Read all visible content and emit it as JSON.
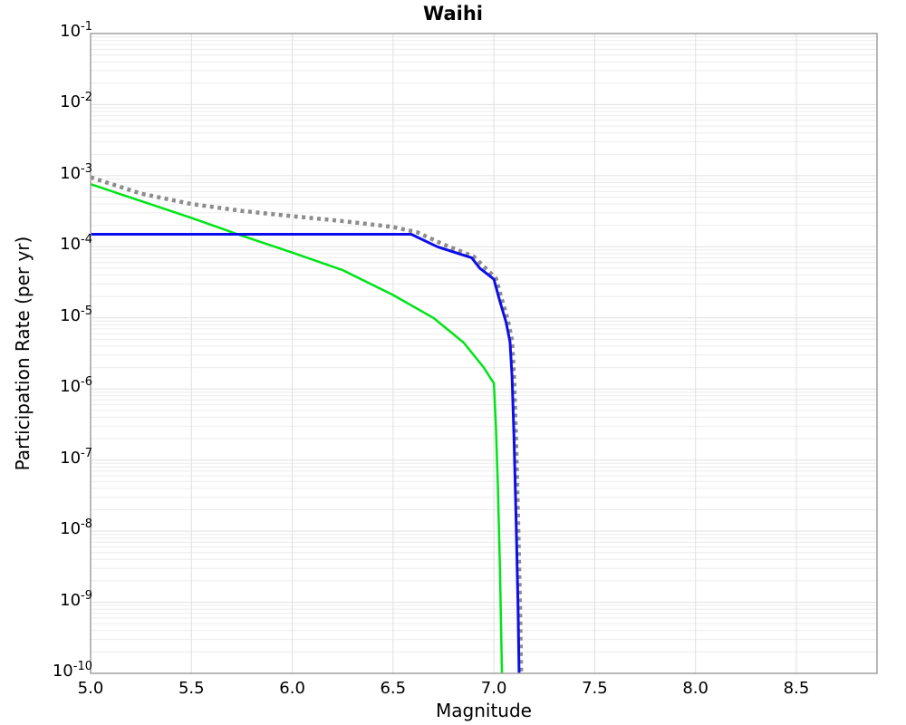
{
  "title": "Waihi",
  "axes": {
    "xlabel": "Magnitude",
    "ylabel": "Participation Rate (per yr)"
  },
  "colors": {
    "background": "#ffffff",
    "grid_minor": "#ececec",
    "grid_major": "#e0e0e0",
    "spine": "#a0a0a0",
    "green_line": "#00e417",
    "blue_line": "#0d0dec",
    "gray_dotted": "#8c8c8c"
  },
  "chart_data": {
    "type": "line",
    "title": "Waihi",
    "xlabel": "Magnitude",
    "ylabel": "Participation Rate (per yr)",
    "x_range": [
      5.0,
      8.9
    ],
    "y_scale": "log",
    "y_range": [
      1e-10,
      0.1
    ],
    "x_ticks": [
      5.0,
      5.5,
      6.0,
      6.5,
      7.0,
      7.5,
      8.0,
      8.5
    ],
    "y_tick_exponents": [
      -1,
      -2,
      -3,
      -4,
      -5,
      -6,
      -7,
      -8,
      -9,
      -10
    ],
    "grid": true,
    "legend": false,
    "series": [
      {
        "name": "green-solid-curve",
        "color": "#00e417",
        "style": "solid",
        "width": 2.5,
        "points": [
          [
            5.0,
            0.00076
          ],
          [
            5.25,
            0.00044
          ],
          [
            5.5,
            0.000255
          ],
          [
            5.73,
            0.00015
          ],
          [
            6.0,
            8.3e-05
          ],
          [
            6.25,
            4.7e-05
          ],
          [
            6.5,
            2.1e-05
          ],
          [
            6.7,
            1e-05
          ],
          [
            6.85,
            4.5e-06
          ],
          [
            6.95,
            2e-06
          ],
          [
            7.0,
            1.2e-06
          ],
          [
            7.01,
            3e-07
          ],
          [
            7.02,
            4e-08
          ],
          [
            7.03,
            3e-09
          ],
          [
            7.04,
            1e-10
          ]
        ]
      },
      {
        "name": "gray-dotted-curve",
        "color": "#8c8c8c",
        "style": "dotted",
        "width": 4.5,
        "points": [
          [
            5.0,
            0.00095
          ],
          [
            5.25,
            0.00056
          ],
          [
            5.5,
            0.0004
          ],
          [
            5.75,
            0.00032
          ],
          [
            6.0,
            0.00027
          ],
          [
            6.25,
            0.00023
          ],
          [
            6.5,
            0.00019
          ],
          [
            6.62,
            0.00016
          ],
          [
            6.75,
            0.000108
          ],
          [
            6.9,
            7.3e-05
          ],
          [
            6.95,
            5.3e-05
          ],
          [
            7.01,
            3.6e-05
          ],
          [
            7.04,
            1.8e-05
          ],
          [
            7.07,
            9.2e-06
          ],
          [
            7.09,
            4.8e-06
          ],
          [
            7.1,
            1.5e-06
          ],
          [
            7.11,
            2e-07
          ],
          [
            7.12,
            1.5e-08
          ],
          [
            7.13,
            8e-10
          ],
          [
            7.135,
            1e-10
          ]
        ]
      },
      {
        "name": "blue-solid-curve",
        "color": "#0d0dec",
        "style": "solid",
        "width": 3,
        "points": [
          [
            5.0,
            0.00015
          ],
          [
            6.59,
            0.00015
          ],
          [
            6.72,
            0.0001
          ],
          [
            6.89,
            7e-05
          ],
          [
            6.93,
            5e-05
          ],
          [
            7.0,
            3.5e-05
          ],
          [
            7.03,
            1.7e-05
          ],
          [
            7.06,
            8.8e-06
          ],
          [
            7.08,
            4.6e-06
          ],
          [
            7.09,
            1.5e-06
          ],
          [
            7.1,
            2e-07
          ],
          [
            7.11,
            1.5e-08
          ],
          [
            7.12,
            8e-10
          ],
          [
            7.125,
            1e-10
          ]
        ]
      }
    ]
  }
}
